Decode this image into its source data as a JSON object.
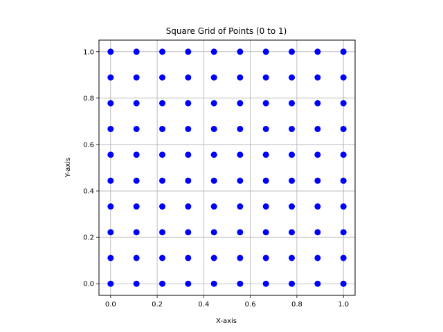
{
  "chart_data": {
    "type": "scatter",
    "title": "Square Grid of Points (0 to 1)",
    "xlabel": "X-axis",
    "ylabel": "Y-axis",
    "xlim": [
      -0.05,
      1.05
    ],
    "ylim": [
      -0.05,
      1.05
    ],
    "xticks": [
      0.0,
      0.2,
      0.4,
      0.6,
      0.8,
      1.0
    ],
    "yticks": [
      0.0,
      0.2,
      0.4,
      0.6,
      0.8,
      1.0
    ],
    "xtick_labels": [
      "0.0",
      "0.2",
      "0.4",
      "0.6",
      "0.8",
      "1.0"
    ],
    "ytick_labels": [
      "0.0",
      "0.2",
      "0.4",
      "0.6",
      "0.8",
      "1.0"
    ],
    "grid": true,
    "grid_values": [
      0.0,
      0.111,
      0.222,
      0.333,
      0.444,
      0.556,
      0.667,
      0.778,
      0.889,
      1.0
    ],
    "point_color": "#0000ff",
    "series": [
      {
        "x_values": [
          0.0,
          0.111,
          0.222,
          0.333,
          0.444,
          0.556,
          0.667,
          0.778,
          0.889,
          1.0
        ],
        "y_values": [
          0.0,
          0.111,
          0.222,
          0.333,
          0.444,
          0.556,
          0.667,
          0.778,
          0.889,
          1.0
        ],
        "layout": "full-grid"
      }
    ]
  }
}
